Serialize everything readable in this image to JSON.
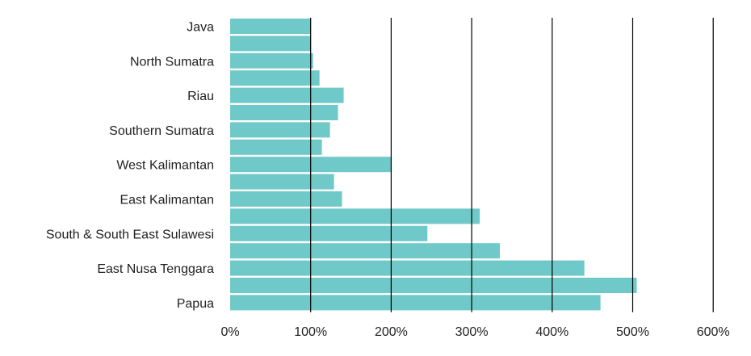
{
  "chart_data": {
    "type": "bar",
    "orientation": "horizontal",
    "title": "",
    "xlabel": "",
    "ylabel": "",
    "categories": [
      "Java",
      "",
      "North Sumatra",
      "",
      "Riau",
      "",
      "Southern Sumatra",
      "",
      "West Kalimantan",
      "",
      "East Kalimantan",
      "",
      "South & South East Sulawesi",
      "",
      "East Nusa Tenggara",
      "",
      "Papua"
    ],
    "values": [
      100,
      100,
      103,
      111,
      141,
      134,
      124,
      114,
      200,
      129,
      139,
      310,
      245,
      335,
      440,
      505,
      460
    ],
    "value_unit": "%",
    "xlim": [
      0,
      600
    ],
    "xticks": [
      0,
      100,
      200,
      300,
      400,
      500,
      600
    ],
    "xtick_labels": [
      "0%",
      "100%",
      "200%",
      "300%",
      "400%",
      "500%",
      "600%"
    ],
    "grid": "vertical",
    "legend": "none",
    "bar_color": "#70C9C9",
    "grid_color": "#000000"
  }
}
